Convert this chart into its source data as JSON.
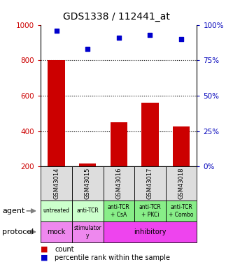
{
  "title": "GDS1338 / 112441_at",
  "samples": [
    "GSM43014",
    "GSM43015",
    "GSM43016",
    "GSM43017",
    "GSM43018"
  ],
  "counts": [
    800,
    215,
    450,
    560,
    425
  ],
  "count_base": 200,
  "percentiles": [
    96,
    83,
    91,
    93,
    90
  ],
  "ylim_left": [
    200,
    1000
  ],
  "ylim_right": [
    0,
    100
  ],
  "yticks_left": [
    200,
    400,
    600,
    800,
    1000
  ],
  "yticks_right": [
    0,
    25,
    50,
    75,
    100
  ],
  "bar_color": "#cc0000",
  "dot_color": "#0000cc",
  "agent_labels": [
    "untreated",
    "anti-TCR",
    "anti-TCR\n+ CsA",
    "anti-TCR\n+ PKCi",
    "anti-TCR\n+ Combo"
  ],
  "agent_bg_light": "#ccffcc",
  "agent_bg_dark": "#88ee88",
  "protocol_mock_color": "#ee88ee",
  "protocol_stim_color": "#ee88ee",
  "protocol_inhib_color": "#ee44ee",
  "legend_count_color": "#cc0000",
  "legend_pct_color": "#0000cc",
  "left_axis_color": "#cc0000",
  "right_axis_color": "#0000bb",
  "sample_bg": "#dddddd"
}
